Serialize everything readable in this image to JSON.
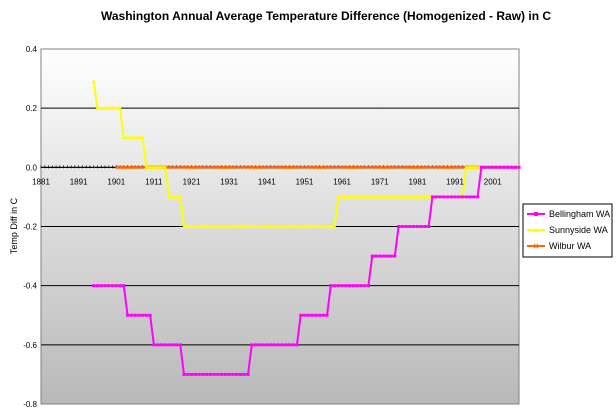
{
  "chart_data": {
    "type": "line",
    "title": "Washington Annual Average Temperature Difference (Homogenized - Raw) in C",
    "xlabel": "",
    "ylabel": "Temp Diff in C",
    "xlim": [
      1881,
      2008
    ],
    "ylim": [
      -0.8,
      0.4
    ],
    "y_ticks": [
      "0.4",
      "0.2",
      "0.0",
      "-0.2",
      "-0.4",
      "-0.6",
      "-0.8"
    ],
    "x_ticks": [
      "1881",
      "1891",
      "1901",
      "1911",
      "1921",
      "1931",
      "1941",
      "1951",
      "1961",
      "1971",
      "1981",
      "1991",
      "2001"
    ],
    "grid": true,
    "legend_position": "right",
    "colors": {
      "Bellingham WA": "#ff00ff",
      "Sunnyside WA": "#ffff00",
      "Wilbur WA": "#ff6600"
    },
    "series": [
      {
        "name": "Bellingham WA",
        "color": "#ff00ff",
        "segments": [
          {
            "x_start": 1895,
            "x_end": 1903,
            "value": -0.4
          },
          {
            "x_start": 1904,
            "x_end": 1910,
            "value": -0.5
          },
          {
            "x_start": 1911,
            "x_end": 1918,
            "value": -0.6
          },
          {
            "x_start": 1919,
            "x_end": 1936,
            "value": -0.7
          },
          {
            "x_start": 1937,
            "x_end": 1949,
            "value": -0.6
          },
          {
            "x_start": 1950,
            "x_end": 1957,
            "value": -0.5
          },
          {
            "x_start": 1958,
            "x_end": 1968,
            "value": -0.4
          },
          {
            "x_start": 1969,
            "x_end": 1975,
            "value": -0.3
          },
          {
            "x_start": 1976,
            "x_end": 1984,
            "value": -0.2
          },
          {
            "x_start": 1985,
            "x_end": 1997,
            "value": -0.1
          },
          {
            "x_start": 1998,
            "x_end": 2008,
            "value": 0.0
          }
        ]
      },
      {
        "name": "Sunnyside WA",
        "color": "#ffff00",
        "first_point": {
          "x": 1895,
          "value": 0.29
        },
        "segments": [
          {
            "x_start": 1896,
            "x_end": 1902,
            "value": 0.2
          },
          {
            "x_start": 1903,
            "x_end": 1908,
            "value": 0.1
          },
          {
            "x_start": 1909,
            "x_end": 1914,
            "value": 0.0
          },
          {
            "x_start": 1915,
            "x_end": 1918,
            "value": -0.1
          },
          {
            "x_start": 1919,
            "x_end": 1959,
            "value": -0.2
          },
          {
            "x_start": 1960,
            "x_end": 1993,
            "value": -0.1
          },
          {
            "x_start": 1994,
            "x_end": 2008,
            "value": 0.0
          }
        ]
      },
      {
        "name": "Wilbur WA",
        "color": "#ff6600",
        "segments": [
          {
            "x_start": 1901,
            "x_end": 2008,
            "value": 0.0
          }
        ]
      }
    ]
  }
}
